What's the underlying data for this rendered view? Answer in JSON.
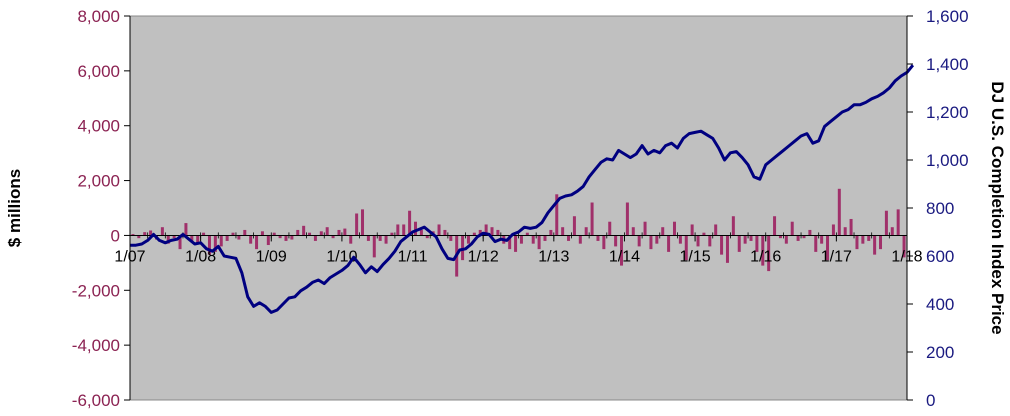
{
  "chart_data": {
    "type": "bar+line",
    "title": "",
    "ylabel_left": "$ millions",
    "ylabel_right": "DJ U.S. Completion Index Price",
    "xlabel": "",
    "ylim_left": [
      -6000,
      8000
    ],
    "ylim_right": [
      0,
      1600
    ],
    "yticks_left": [
      "8,000",
      "6,000",
      "4,000",
      "2,000",
      "0",
      "-2,000",
      "-4,000",
      "-6,000"
    ],
    "yticks_left_values": [
      8000,
      6000,
      4000,
      2000,
      0,
      -2000,
      -4000,
      -6000
    ],
    "yticks_right": [
      "1,600",
      "1,400",
      "1,200",
      "1,000",
      "800",
      "600",
      "400",
      "200",
      "0"
    ],
    "yticks_right_values": [
      1600,
      1400,
      1200,
      1000,
      800,
      600,
      400,
      200,
      0
    ],
    "xticks": [
      "1/07",
      "1/08",
      "1/09",
      "1/10",
      "1/11",
      "1/12",
      "1/13",
      "1/14",
      "1/15",
      "1/16",
      "1/17",
      "1/18"
    ],
    "xticks_values": [
      0,
      12,
      24,
      36,
      48,
      60,
      72,
      84,
      96,
      108,
      120,
      132
    ],
    "x_range_months": [
      0,
      132
    ],
    "grid": false,
    "background": "#c0c0c0",
    "series": [
      {
        "kind": "bar",
        "axis": "left",
        "color": "#a0306a",
        "values": [
          50,
          -100,
          120,
          180,
          -150,
          300,
          -300,
          -100,
          -500,
          450,
          -200,
          -300,
          100,
          -700,
          -600,
          -400,
          -200,
          100,
          -150,
          200,
          -300,
          -500,
          150,
          -350,
          100,
          -100,
          -200,
          -150,
          200,
          350,
          100,
          -200,
          150,
          300,
          -100,
          200,
          250,
          -300,
          800,
          950,
          -200,
          -800,
          -200,
          -300,
          100,
          400,
          400,
          900,
          500,
          200,
          -100,
          150,
          400,
          200,
          -200,
          -1500,
          -900,
          -300,
          100,
          200,
          400,
          300,
          200,
          -300,
          -500,
          -600,
          -300,
          100,
          -300,
          -500,
          -200,
          200,
          1500,
          300,
          -200,
          700,
          -300,
          300,
          1200,
          -200,
          -500,
          500,
          -400,
          -1100,
          1200,
          300,
          -400,
          500,
          -500,
          -300,
          300,
          -600,
          500,
          -300,
          -900,
          400,
          -400,
          100,
          -400,
          400,
          -700,
          -1000,
          700,
          -600,
          -300,
          -200,
          -600,
          -1100,
          -1300,
          700,
          -100,
          -300,
          500,
          -200,
          -100,
          200,
          -600,
          -300,
          -900,
          400,
          1700,
          300,
          600,
          -500,
          -300,
          -200,
          -700,
          -500,
          900,
          300,
          950,
          -800
        ]
      },
      {
        "kind": "line",
        "axis": "right",
        "color": "#000080",
        "values": [
          645,
          645,
          650,
          665,
          690,
          665,
          655,
          665,
          670,
          690,
          670,
          650,
          655,
          630,
          620,
          640,
          600,
          595,
          590,
          530,
          430,
          390,
          405,
          390,
          365,
          375,
          400,
          425,
          430,
          455,
          470,
          490,
          500,
          485,
          510,
          525,
          540,
          560,
          595,
          565,
          530,
          555,
          535,
          565,
          590,
          620,
          660,
          680,
          700,
          710,
          720,
          700,
          680,
          630,
          590,
          585,
          625,
          630,
          650,
          680,
          695,
          690,
          660,
          670,
          665,
          690,
          700,
          720,
          715,
          720,
          740,
          780,
          810,
          840,
          850,
          855,
          870,
          890,
          930,
          960,
          990,
          1005,
          1000,
          1040,
          1025,
          1010,
          1025,
          1060,
          1025,
          1040,
          1030,
          1060,
          1070,
          1050,
          1090,
          1110,
          1115,
          1120,
          1105,
          1090,
          1050,
          1000,
          1030,
          1035,
          1010,
          980,
          930,
          920,
          980,
          1000,
          1020,
          1040,
          1060,
          1080,
          1100,
          1110,
          1070,
          1080,
          1140,
          1160,
          1180,
          1200,
          1210,
          1230,
          1230,
          1240,
          1255,
          1265,
          1280,
          1300,
          1330,
          1350,
          1365,
          1395
        ]
      }
    ]
  }
}
